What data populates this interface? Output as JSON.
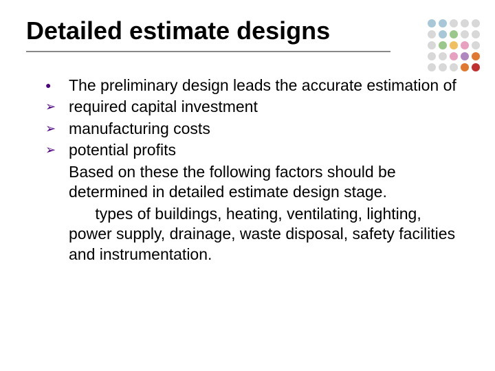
{
  "title": "Detailed estimate designs",
  "title_fontsize": 36,
  "title_color": "#000000",
  "underline_color": "#888888",
  "body_fontsize": 23,
  "body_color": "#000000",
  "bullet_color": "#4b0082",
  "background_color": "#ffffff",
  "bullets": [
    {
      "marker": "round",
      "text": "The preliminary design leads the accurate estimation of"
    },
    {
      "marker": "arrow",
      "text": "required capital investment"
    },
    {
      "marker": "arrow",
      "text": "manufacturing costs"
    },
    {
      "marker": "arrow",
      "text": "potential profits"
    }
  ],
  "continuation": [
    "Based on these the following factors should be determined in detailed estimate design stage.",
    "      types of buildings, heating, ventilating, lighting, power supply, drainage, waste disposal, safety facilities and instrumentation."
  ],
  "dot_grid": {
    "rows": 5,
    "cols": 5,
    "gap": 4,
    "cell_size": 12,
    "colors": [
      "#a8c8d8",
      "#a8c8d8",
      "#d8d8d8",
      "#d8d8d8",
      "#d8d8d8",
      "#d8d8d8",
      "#a8c8d8",
      "#9ac88a",
      "#d8d8d8",
      "#d8d8d8",
      "#d8d8d8",
      "#9ac88a",
      "#f0c060",
      "#e8a0c0",
      "#d8d8d8",
      "#d8d8d8",
      "#d8d8d8",
      "#e8a0c0",
      "#b088c0",
      "#e07830",
      "#d8d8d8",
      "#d8d8d8",
      "#d8d8d8",
      "#e07830",
      "#c03030"
    ]
  }
}
